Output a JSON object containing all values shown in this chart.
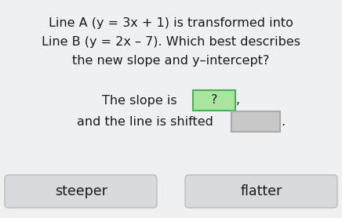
{
  "bg_color": "#eef0f2",
  "title_line1": "Line A (y = 3x + 1) is transformed into",
  "title_line2": "Line B (y = 2x – 7). Which best describes",
  "title_line3": "the new slope and y–intercept?",
  "sentence_line1_prefix": "The slope is ",
  "sentence_line1_box_text": "?",
  "sentence_line1_box_color": "#a8e6a0",
  "sentence_line1_box_border": "#55aa55",
  "sentence_line1_suffix": ",",
  "sentence_line2_prefix": "and the line is shifted ",
  "sentence_line2_box_color": "#c8c8c8",
  "sentence_line2_box_border": "#aaaaaa",
  "sentence_line2_suffix": ".",
  "btn_color": "#d8dade",
  "btn_border": "#bbbbbb",
  "btn1_text": "steeper",
  "btn2_text": "flatter",
  "text_color": "#1a1a1a",
  "font_size_title": 11.5,
  "font_size_sentence": 11.5,
  "font_size_btn": 12.5
}
